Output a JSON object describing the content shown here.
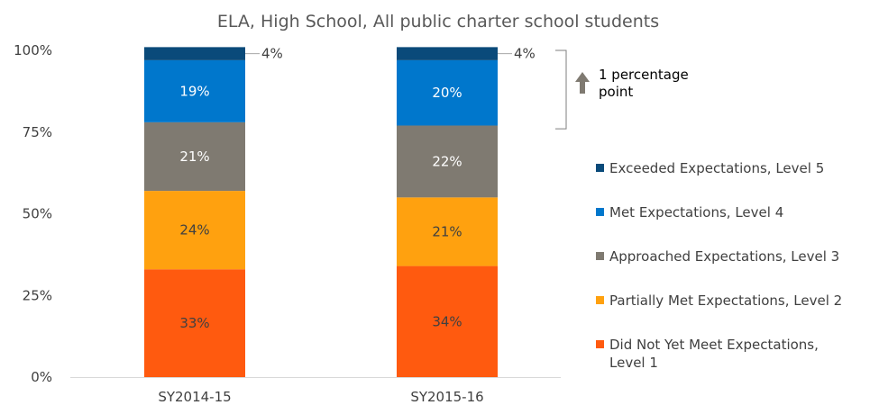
{
  "chart_data": {
    "type": "bar",
    "stacked": true,
    "title": "ELA, High School, All public charter school students",
    "categories": [
      "SY2014-15",
      "SY2015-16"
    ],
    "yticks": [
      "0%",
      "25%",
      "50%",
      "75%",
      "100%"
    ],
    "ylim": [
      0,
      100
    ],
    "series": [
      {
        "name": "Did Not Yet Meet Expectations, Level 1",
        "legend_lines": [
          "Did Not Yet Meet Expectations,",
          "Level 1"
        ],
        "color": "#FF5A0F",
        "values": [
          33,
          34
        ],
        "labels": [
          "33%",
          "34%"
        ],
        "label_color": "#404040"
      },
      {
        "name": "Partially Met Expectations, Level 2",
        "legend_lines": [
          "Partially Met Expectations, Level 2"
        ],
        "color": "#FFA10F",
        "values": [
          24,
          21
        ],
        "labels": [
          "24%",
          "21%"
        ],
        "label_color": "#404040"
      },
      {
        "name": "Approached Expectations, Level 3",
        "legend_lines": [
          "Approached Expectations, Level 3"
        ],
        "color": "#7F7A71",
        "values": [
          21,
          22
        ],
        "labels": [
          "21%",
          "22%"
        ],
        "label_color": "#ffffff"
      },
      {
        "name": "Met Expectations, Level 4",
        "legend_lines": [
          "Met Expectations, Level 4"
        ],
        "color": "#0077CC",
        "values": [
          19,
          20
        ],
        "labels": [
          "19%",
          "20%"
        ],
        "label_color": "#ffffff"
      },
      {
        "name": "Exceeded Expectations, Level 5",
        "legend_lines": [
          "Exceeded Expectations, Level 5"
        ],
        "color": "#0A4A7A",
        "values": [
          4,
          4
        ],
        "labels": [
          "4%",
          "4%"
        ],
        "label_color": "#404040"
      }
    ],
    "legend_position": "right",
    "annotation": {
      "lines": [
        "1 percentage",
        "point"
      ],
      "arrow_color": "#7F7A71",
      "direction": "up"
    }
  }
}
